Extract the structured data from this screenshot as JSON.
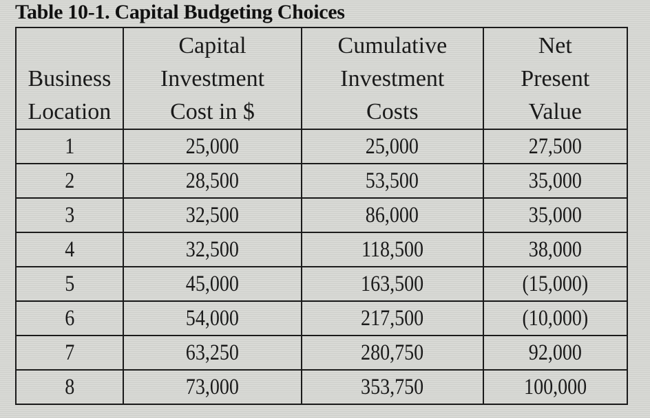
{
  "title": "Table 10-1. Capital Budgeting Choices",
  "headers": [
    {
      "lines": [
        "",
        "Business",
        "Location"
      ]
    },
    {
      "lines": [
        "Capital",
        "Investment",
        "Cost in $"
      ]
    },
    {
      "lines": [
        "Cumulative",
        "Investment",
        "Costs"
      ]
    },
    {
      "lines": [
        "Net",
        "Present",
        "Value"
      ]
    }
  ],
  "rows": [
    [
      "1",
      "25,000",
      "25,000",
      "27,500"
    ],
    [
      "2",
      "28,500",
      "53,500",
      "35,000"
    ],
    [
      "3",
      "32,500",
      "86,000",
      "35,000"
    ],
    [
      "4",
      "32,500",
      "118,500",
      "38,000"
    ],
    [
      "5",
      "45,000",
      "163,500",
      "(15,000)"
    ],
    [
      "6",
      "54,000",
      "217,500",
      "(10,000)"
    ],
    [
      "7",
      "63,250",
      "280,750",
      "92,000"
    ],
    [
      "8",
      "73,000",
      "353,750",
      "100,000"
    ]
  ]
}
